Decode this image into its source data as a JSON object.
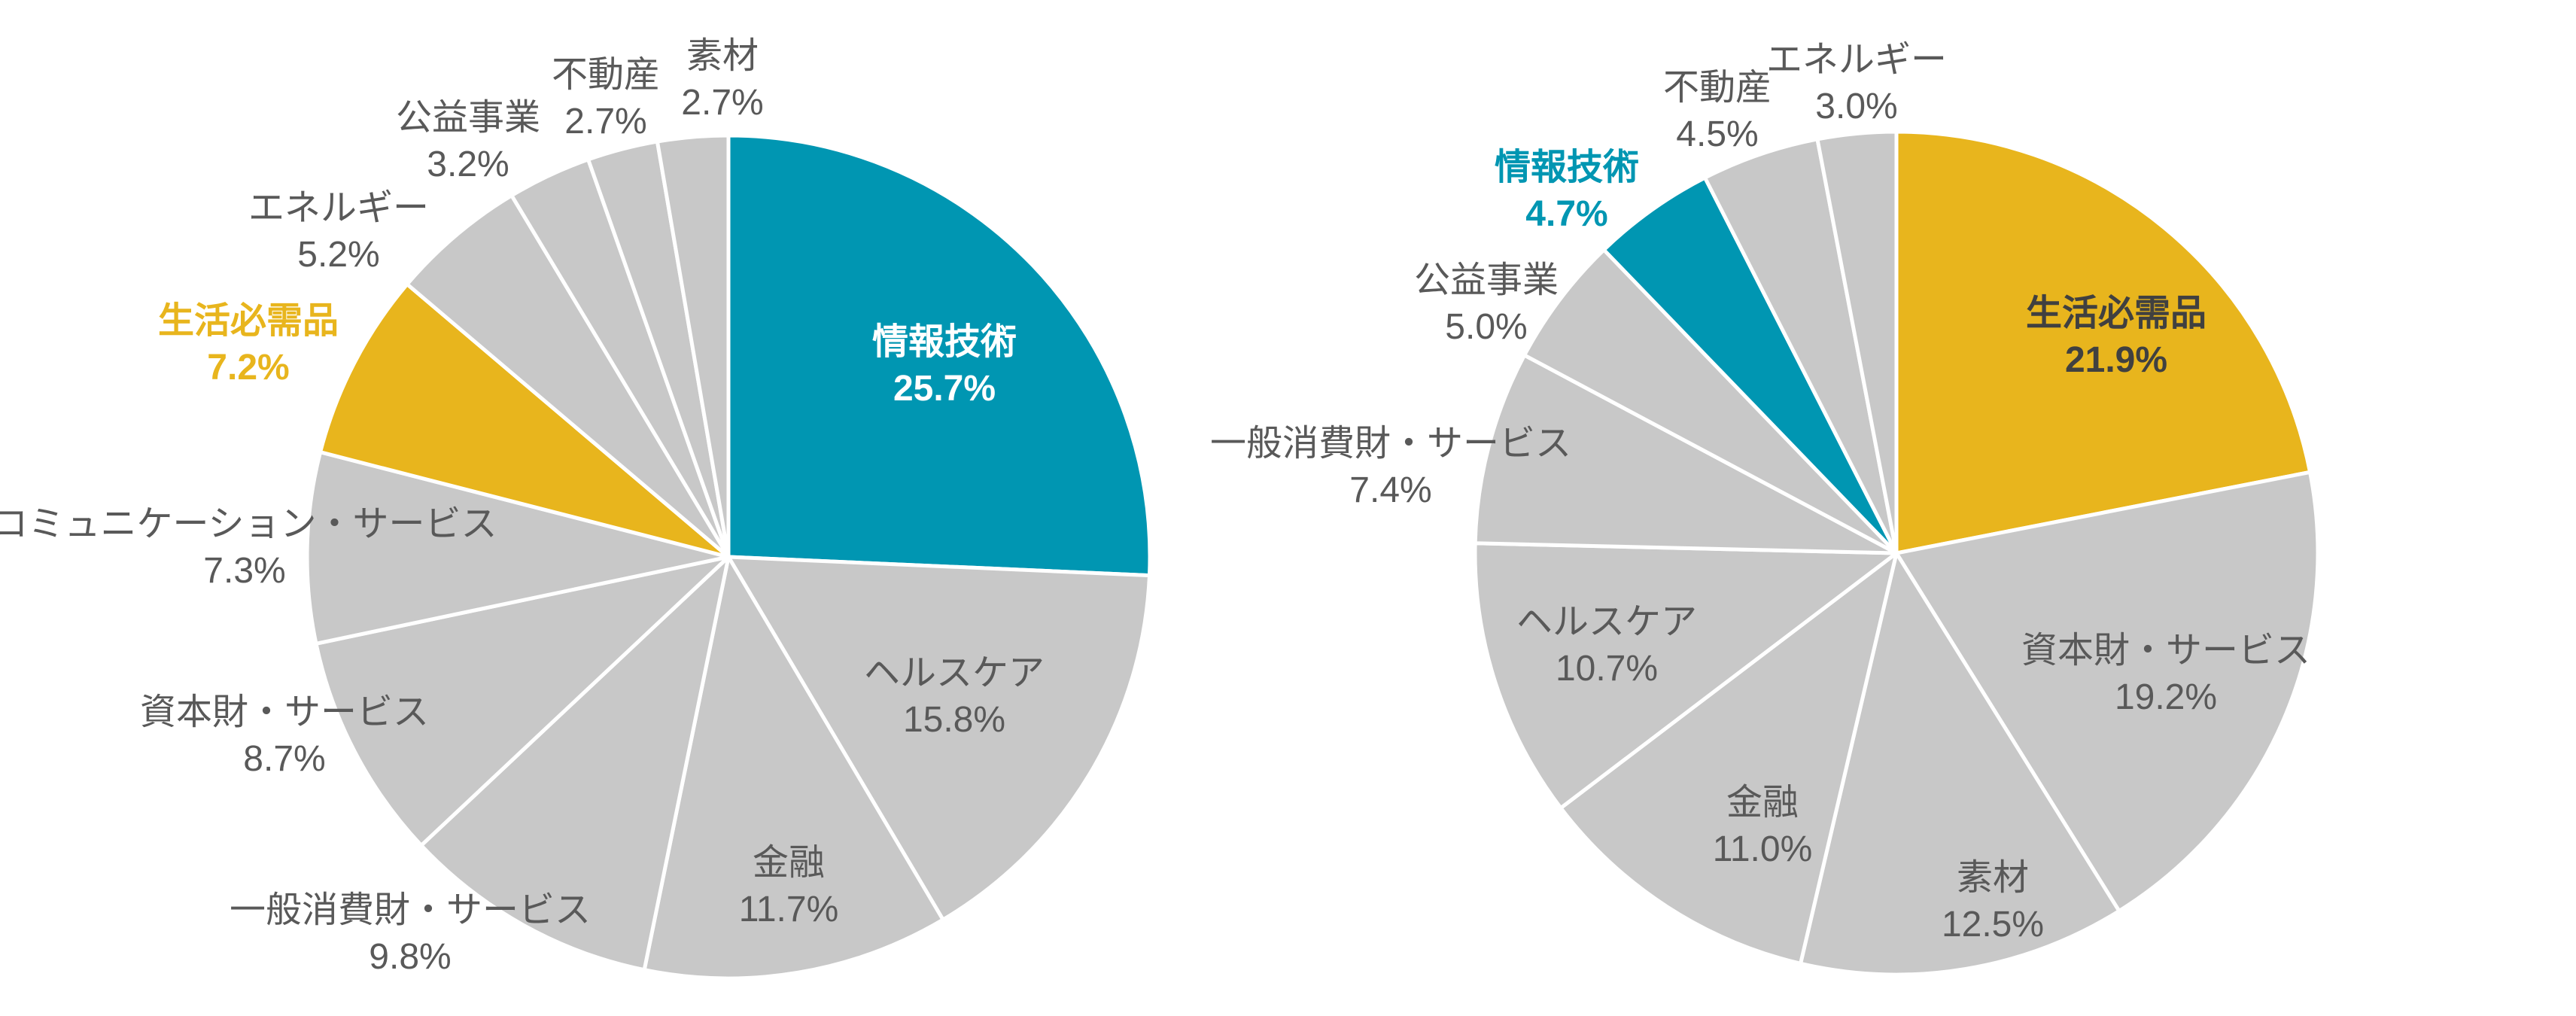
{
  "chart_data": [
    {
      "type": "pie",
      "start_angle_deg": 0,
      "direction": "clockwise",
      "slices": [
        {
          "name": "情報技術",
          "value": 25.7,
          "label": "25.7%",
          "color": "#0096B2",
          "highlight": true,
          "label_color": "#FFFFFF",
          "label_inside": true
        },
        {
          "name": "ヘルスケア",
          "value": 15.8,
          "label": "15.8%",
          "color": "#C8C8C8",
          "label_inside": true
        },
        {
          "name": "金融",
          "value": 11.7,
          "label": "11.7%",
          "color": "#C8C8C8",
          "label_inside": true
        },
        {
          "name": "一般消費財・サービス",
          "value": 9.8,
          "label": "9.8%",
          "color": "#C8C8C8",
          "label_inside": false
        },
        {
          "name": "資本財・サービス",
          "value": 8.7,
          "label": "8.7%",
          "color": "#C8C8C8",
          "label_inside": false
        },
        {
          "name": "コミュニケーション・サービス",
          "value": 7.3,
          "label": "7.3%",
          "color": "#C8C8C8",
          "label_inside": false
        },
        {
          "name": "生活必需品",
          "value": 7.2,
          "label": "7.2%",
          "color": "#E8B51D",
          "highlight": true,
          "label_color": "#E8B51D",
          "label_inside": false
        },
        {
          "name": "エネルギー",
          "value": 5.2,
          "label": "5.2%",
          "color": "#C8C8C8",
          "label_inside": false
        },
        {
          "name": "公益事業",
          "value": 3.2,
          "label": "3.2%",
          "color": "#C8C8C8",
          "label_inside": false
        },
        {
          "name": "不動産",
          "value": 2.7,
          "label": "2.7%",
          "color": "#C8C8C8",
          "label_inside": false
        },
        {
          "name": "素材",
          "value": 2.7,
          "label": "2.7%",
          "color": "#C8C8C8",
          "label_inside": false
        }
      ]
    },
    {
      "type": "pie",
      "start_angle_deg": 0,
      "direction": "clockwise",
      "slices": [
        {
          "name": "生活必需品",
          "value": 21.9,
          "label": "21.9%",
          "color": "#E8B51D",
          "highlight": true,
          "label_color": "#404040",
          "label_inside": true
        },
        {
          "name": "資本財・サービス",
          "value": 19.2,
          "label": "19.2%",
          "color": "#C8C8C8",
          "label_inside": true
        },
        {
          "name": "素材",
          "value": 12.5,
          "label": "12.5%",
          "color": "#C8C8C8",
          "label_inside": true
        },
        {
          "name": "金融",
          "value": 11.0,
          "label": "11.0%",
          "color": "#C8C8C8",
          "label_inside": true
        },
        {
          "name": "ヘルスケア",
          "value": 10.7,
          "label": "10.7%",
          "color": "#C8C8C8",
          "label_inside": true
        },
        {
          "name": "一般消費財・サービス",
          "value": 7.4,
          "label": "7.4%",
          "color": "#C8C8C8",
          "label_inside": false
        },
        {
          "name": "公益事業",
          "value": 5.0,
          "label": "5.0%",
          "color": "#C8C8C8",
          "label_inside": false
        },
        {
          "name": "情報技術",
          "value": 4.7,
          "label": "4.7%",
          "color": "#0096B2",
          "highlight": true,
          "label_color": "#0096B2",
          "label_inside": false
        },
        {
          "name": "不動産",
          "value": 4.5,
          "label": "4.5%",
          "color": "#C8C8C8",
          "label_inside": false
        },
        {
          "name": "エネルギー",
          "value": 3.0,
          "label": "3.0%",
          "color": "#C8C8C8",
          "label_inside": false
        }
      ]
    }
  ]
}
